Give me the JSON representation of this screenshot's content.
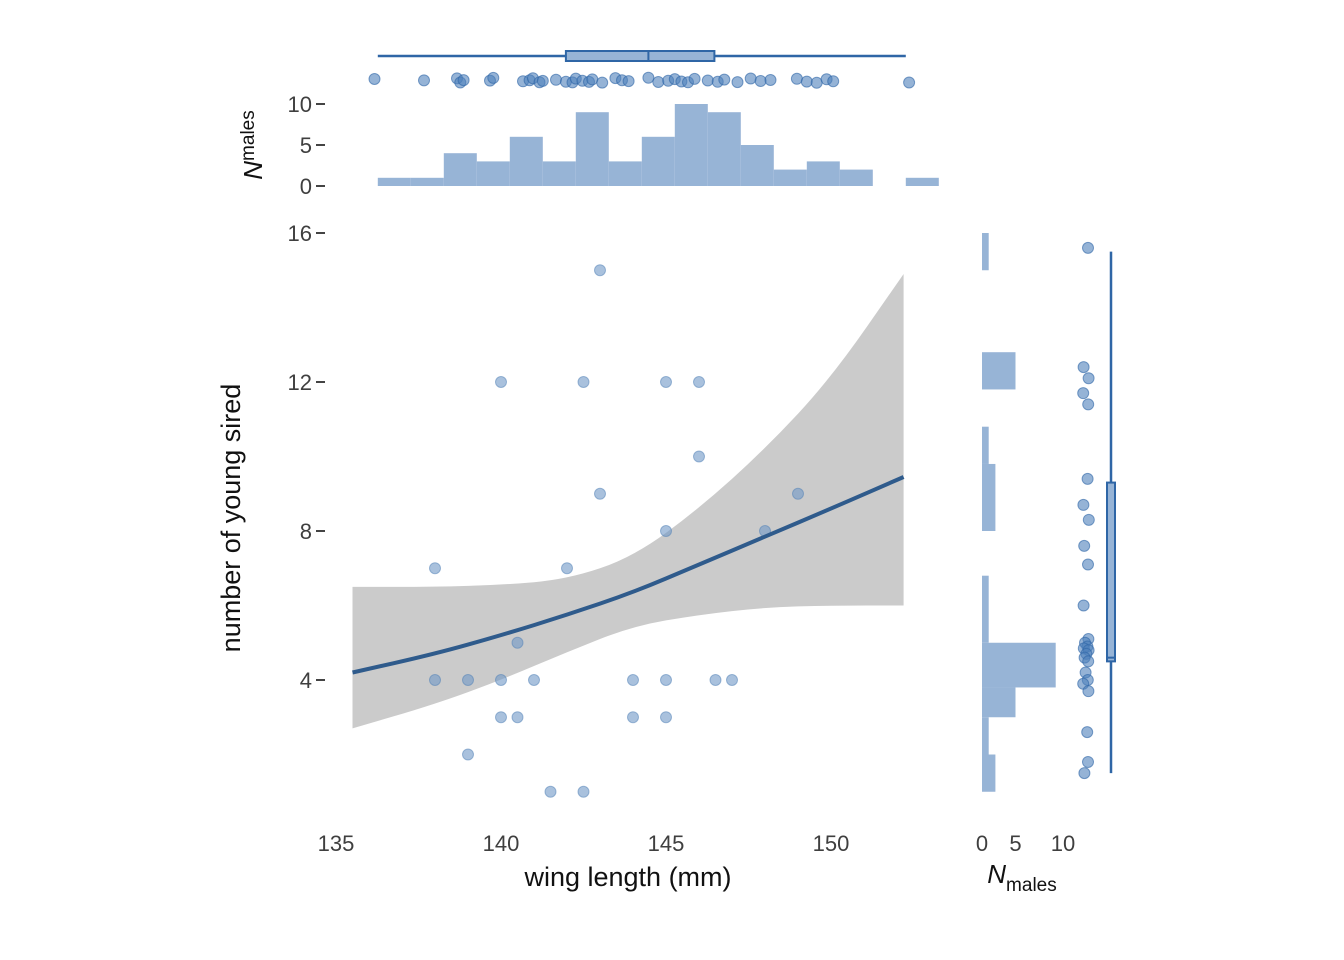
{
  "chart_data": {
    "type": "scatter",
    "main": {
      "xlabel": "wing length (mm)",
      "ylabel": "number of young sired",
      "x_ticks": [
        135,
        140,
        145,
        150
      ],
      "y_ticks": [
        4,
        8,
        12,
        16
      ],
      "xlim": [
        134.5,
        153.0
      ],
      "ylim": [
        0.6,
        16.0
      ],
      "points": [
        {
          "x": 138.0,
          "y": 7
        },
        {
          "x": 138.0,
          "y": 4
        },
        {
          "x": 139.0,
          "y": 4
        },
        {
          "x": 139.0,
          "y": 2
        },
        {
          "x": 140.0,
          "y": 12
        },
        {
          "x": 140.0,
          "y": 4
        },
        {
          "x": 140.0,
          "y": 3
        },
        {
          "x": 140.5,
          "y": 5
        },
        {
          "x": 140.5,
          "y": 3
        },
        {
          "x": 141.0,
          "y": 4
        },
        {
          "x": 141.5,
          "y": 1
        },
        {
          "x": 142.0,
          "y": 7
        },
        {
          "x": 142.5,
          "y": 12
        },
        {
          "x": 142.5,
          "y": 1
        },
        {
          "x": 143.0,
          "y": 15
        },
        {
          "x": 143.0,
          "y": 9
        },
        {
          "x": 144.0,
          "y": 4
        },
        {
          "x": 144.0,
          "y": 3
        },
        {
          "x": 145.0,
          "y": 12
        },
        {
          "x": 145.0,
          "y": 8
        },
        {
          "x": 145.0,
          "y": 4
        },
        {
          "x": 145.0,
          "y": 3
        },
        {
          "x": 146.0,
          "y": 12
        },
        {
          "x": 146.0,
          "y": 10
        },
        {
          "x": 146.5,
          "y": 4
        },
        {
          "x": 147.0,
          "y": 4
        },
        {
          "x": 148.0,
          "y": 8
        },
        {
          "x": 149.0,
          "y": 9
        }
      ],
      "fit_line": [
        {
          "x": 135.5,
          "y": 4.2
        },
        {
          "x": 138.0,
          "y": 4.7
        },
        {
          "x": 140.0,
          "y": 5.2
        },
        {
          "x": 142.0,
          "y": 5.75
        },
        {
          "x": 144.0,
          "y": 6.35
        },
        {
          "x": 146.0,
          "y": 7.1
        },
        {
          "x": 148.0,
          "y": 7.85
        },
        {
          "x": 150.0,
          "y": 8.6
        },
        {
          "x": 152.2,
          "y": 9.45
        }
      ],
      "ci_upper": [
        {
          "x": 135.5,
          "y": 6.5
        },
        {
          "x": 138.0,
          "y": 6.5
        },
        {
          "x": 140.0,
          "y": 6.55
        },
        {
          "x": 142.0,
          "y": 6.7
        },
        {
          "x": 144.0,
          "y": 7.3
        },
        {
          "x": 146.0,
          "y": 8.6
        },
        {
          "x": 148.0,
          "y": 10.2
        },
        {
          "x": 150.0,
          "y": 12.1
        },
        {
          "x": 152.2,
          "y": 14.9
        }
      ],
      "ci_lower": [
        {
          "x": 135.5,
          "y": 2.7
        },
        {
          "x": 138.0,
          "y": 3.35
        },
        {
          "x": 140.0,
          "y": 4.0
        },
        {
          "x": 142.0,
          "y": 4.75
        },
        {
          "x": 144.0,
          "y": 5.45
        },
        {
          "x": 146.0,
          "y": 5.75
        },
        {
          "x": 148.0,
          "y": 5.95
        },
        {
          "x": 150.0,
          "y": 6.0
        },
        {
          "x": 152.2,
          "y": 6.0
        }
      ]
    },
    "top_histogram": {
      "ylabel_main": "N",
      "ylabel_sub": "males",
      "y_ticks": [
        0,
        5,
        10
      ],
      "ylim": [
        0,
        11
      ],
      "bins": [
        {
          "x0": 135.6,
          "x1": 136.6,
          "count": 1
        },
        {
          "x0": 136.6,
          "x1": 137.6,
          "count": 1
        },
        {
          "x0": 137.6,
          "x1": 138.6,
          "count": 4
        },
        {
          "x0": 138.6,
          "x1": 139.6,
          "count": 3
        },
        {
          "x0": 139.6,
          "x1": 140.6,
          "count": 6
        },
        {
          "x0": 140.6,
          "x1": 141.6,
          "count": 3
        },
        {
          "x0": 141.6,
          "x1": 142.6,
          "count": 9
        },
        {
          "x0": 142.6,
          "x1": 143.6,
          "count": 3
        },
        {
          "x0": 143.6,
          "x1": 144.6,
          "count": 6
        },
        {
          "x0": 144.6,
          "x1": 145.6,
          "count": 10
        },
        {
          "x0": 145.6,
          "x1": 146.6,
          "count": 9
        },
        {
          "x0": 146.6,
          "x1": 147.6,
          "count": 5
        },
        {
          "x0": 147.6,
          "x1": 148.6,
          "count": 2
        },
        {
          "x0": 148.6,
          "x1": 149.6,
          "count": 3
        },
        {
          "x0": 149.6,
          "x1": 150.6,
          "count": 2
        },
        {
          "x0": 151.6,
          "x1": 152.6,
          "count": 1
        }
      ],
      "boxplot": {
        "min": 135.6,
        "q1": 141.3,
        "median": 143.8,
        "q3": 145.8,
        "max": 151.6
      },
      "jitter_x": [
        135.5,
        137.0,
        138.0,
        138.1,
        138.2,
        139.0,
        139.1,
        140.0,
        140.2,
        140.3,
        140.5,
        140.6,
        141.0,
        141.3,
        141.5,
        141.6,
        141.8,
        142.0,
        142.1,
        142.4,
        142.8,
        143.0,
        143.2,
        143.8,
        144.1,
        144.4,
        144.6,
        144.8,
        145.0,
        145.2,
        145.6,
        145.9,
        146.1,
        146.5,
        146.9,
        147.2,
        147.5,
        148.3,
        148.6,
        148.9,
        149.2,
        149.4,
        151.7
      ],
      "jitter_y": [
        -1,
        0.4,
        -1.6,
        2.5,
        0.1,
        0.6,
        -2.1,
        1.3,
        0.3,
        -1.8,
        2.2,
        0.9,
        -0.2,
        1.7,
        2.4,
        -1.4,
        0.8,
        1.9,
        -0.6,
        2.6,
        -1.9,
        0.2,
        1.1,
        -2.3,
        2.0,
        0.7,
        -0.9,
        1.5,
        2.3,
        -1.1,
        0.5,
        1.8,
        -0.4,
        2.1,
        -1.5,
        1.0,
        0.0,
        -1.2,
        1.6,
        2.7,
        -0.7,
        1.2,
        2.5
      ]
    },
    "right_histogram": {
      "xlabel_main": "N",
      "xlabel_sub": "males",
      "x_ticks": [
        0,
        5,
        10
      ],
      "xlim": [
        0,
        11
      ],
      "bins": [
        {
          "y0": 15.0,
          "y1": 16.0,
          "count": 1
        },
        {
          "y0": 11.8,
          "y1": 12.8,
          "count": 5
        },
        {
          "y0": 9.8,
          "y1": 10.8,
          "count": 1
        },
        {
          "y0": 8.0,
          "y1": 9.8,
          "count": 2
        },
        {
          "y0": 5.0,
          "y1": 6.8,
          "count": 1
        },
        {
          "y0": 3.8,
          "y1": 5.0,
          "count": 11
        },
        {
          "y0": 3.0,
          "y1": 3.8,
          "count": 5
        },
        {
          "y0": 2.0,
          "y1": 3.0,
          "count": 1
        },
        {
          "y0": 1.0,
          "y1": 2.0,
          "count": 2
        }
      ],
      "boxplot": {
        "min": 1.5,
        "q1": 4.5,
        "median": 4.6,
        "q3": 9.3,
        "max": 15.5
      },
      "jitter_y": [
        15.6,
        12.4,
        12.1,
        11.7,
        11.4,
        9.4,
        8.7,
        8.3,
        7.6,
        7.1,
        6.0,
        5.1,
        5.0,
        4.9,
        4.85,
        4.8,
        4.7,
        4.6,
        4.5,
        4.2,
        4.0,
        3.9,
        3.7,
        2.6,
        1.8,
        1.5
      ],
      "jitter_x": [
        1.0,
        -1.2,
        1.3,
        -1.4,
        1.1,
        0.8,
        -1.3,
        1.4,
        -0.9,
        1.0,
        -1.2,
        1.2,
        -0.5,
        0.7,
        -1.1,
        1.3,
        0.2,
        -0.7,
        1.1,
        -0.2,
        0.9,
        -1.4,
        1.2,
        0.6,
        1.0,
        -0.8
      ]
    }
  }
}
